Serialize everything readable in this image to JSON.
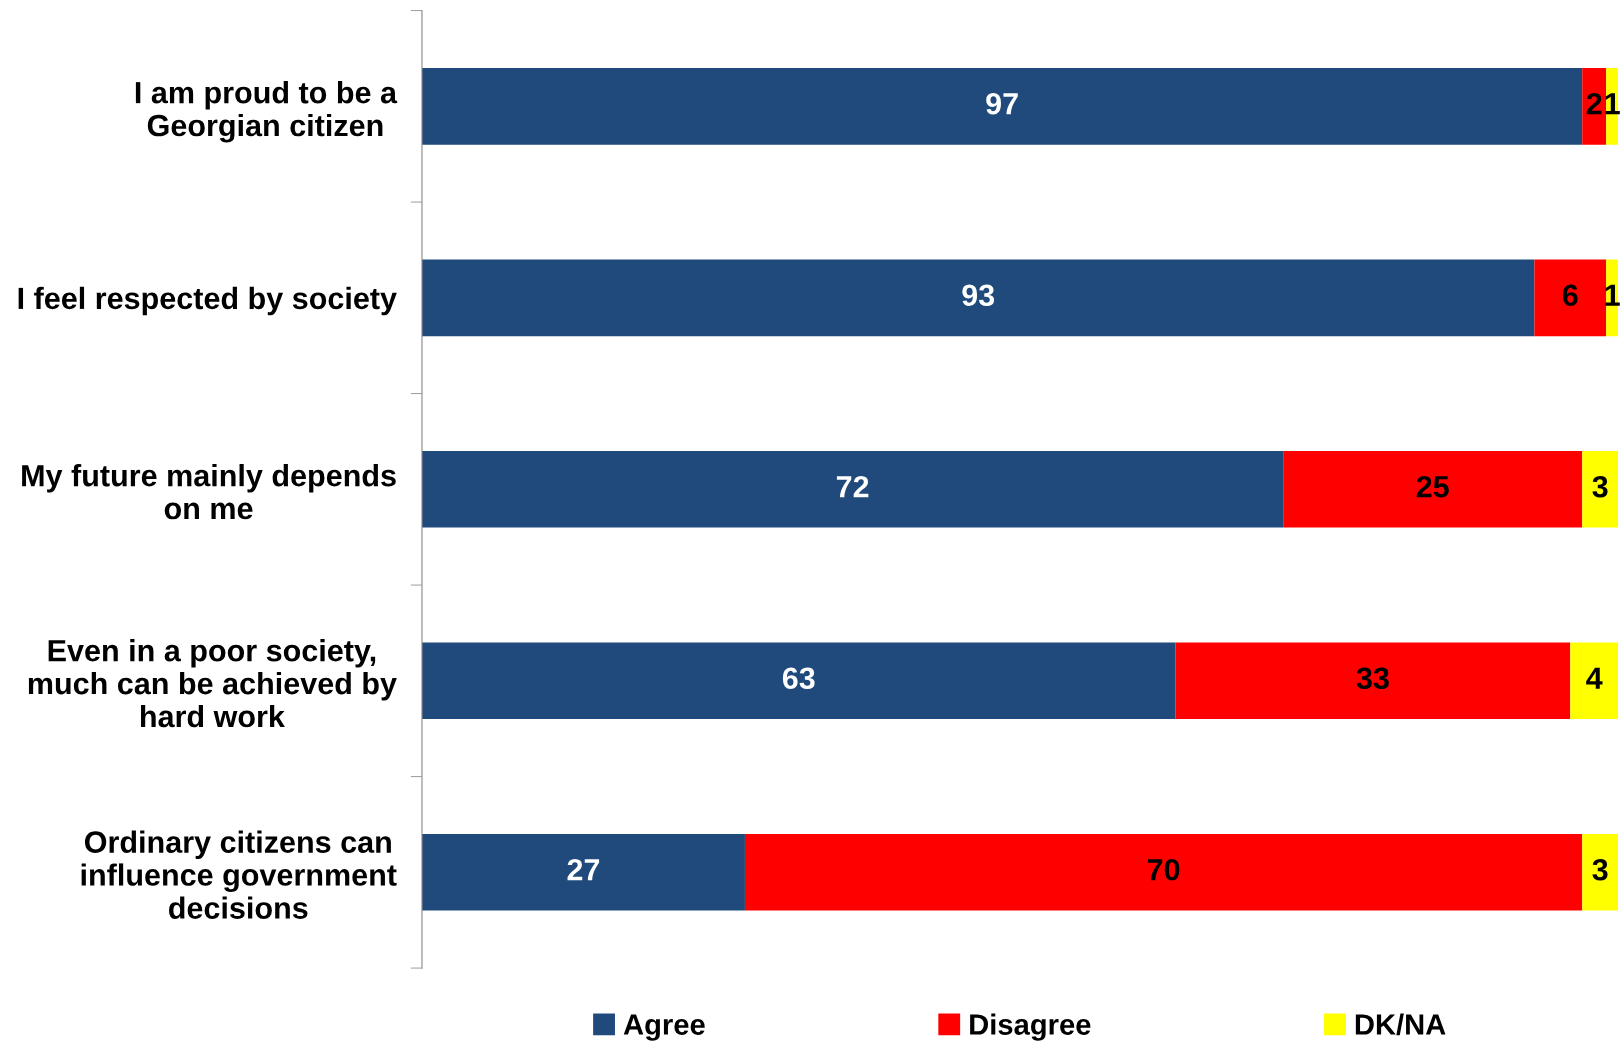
{
  "chart_data": {
    "type": "bar",
    "orientation": "horizontal",
    "stacked": true,
    "categories": [
      "I am proud to be a Georgian citizen",
      "I feel respected by society",
      "My future mainly depends on me",
      "Even in a poor society, much can be achieved by hard work",
      "Ordinary citizens can influence government decisions"
    ],
    "series": [
      {
        "name": "Agree",
        "color": "#214a7c",
        "values": [
          97,
          93,
          72,
          63,
          27
        ]
      },
      {
        "name": "Disagree",
        "color": "#ff0000",
        "values": [
          2,
          6,
          25,
          33,
          70
        ]
      },
      {
        "name": "DK/NA",
        "color": "#ffff00",
        "values": [
          1,
          1,
          3,
          4,
          3
        ]
      }
    ],
    "xlim": [
      0,
      100
    ],
    "tick_labels": "y",
    "data_labels": true,
    "legend": "bottom",
    "grid": false
  }
}
